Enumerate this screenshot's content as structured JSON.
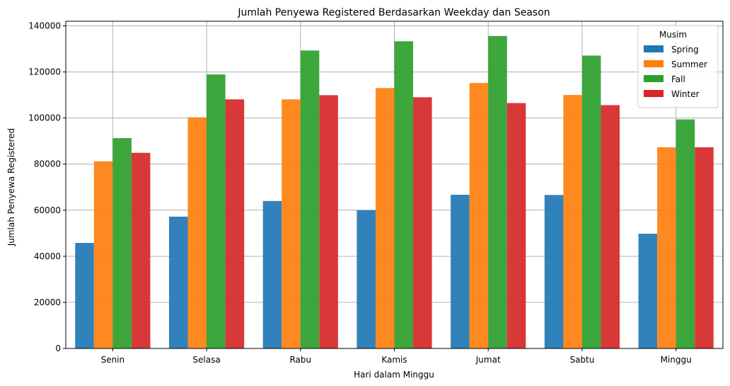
{
  "chart_data": {
    "type": "bar",
    "title": "Jumlah Penyewa Registered Berdasarkan Weekday dan Season",
    "xlabel": "Hari dalam Minggu",
    "ylabel": "Jumlah Penyewa Registered",
    "categories": [
      "Senin",
      "Selasa",
      "Rabu",
      "Kamis",
      "Jumat",
      "Sabtu",
      "Minggu"
    ],
    "ylim": [
      0,
      142000
    ],
    "yticks": [
      0,
      20000,
      40000,
      60000,
      80000,
      100000,
      120000,
      140000
    ],
    "grid": true,
    "legend": {
      "title": "Musim",
      "position": "top-right"
    },
    "series": [
      {
        "name": "Spring",
        "color": "#1f77b4",
        "values": [
          45800,
          57200,
          64000,
          60000,
          66700,
          66600,
          49800
        ]
      },
      {
        "name": "Summer",
        "color": "#ff7f0e",
        "values": [
          81200,
          100300,
          108100,
          113000,
          115200,
          110000,
          87300
        ]
      },
      {
        "name": "Fall",
        "color": "#2ca02c",
        "values": [
          91300,
          118900,
          129300,
          133300,
          135600,
          127100,
          99400
        ]
      },
      {
        "name": "Winter",
        "color": "#d62728",
        "values": [
          84900,
          108100,
          109900,
          109000,
          106500,
          105600,
          87300
        ]
      }
    ]
  }
}
